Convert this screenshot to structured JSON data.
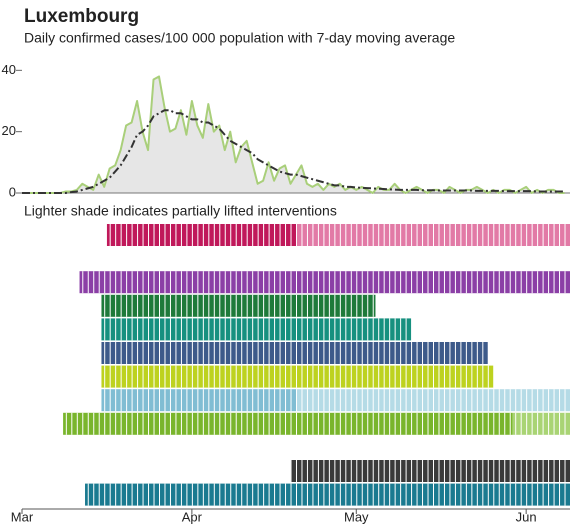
{
  "chart_data": {
    "type": "line",
    "title": "Luxembourg",
    "subtitle": "Daily confirmed cases/100 000 population with 7-day moving average",
    "interventions_note": "Lighter shade indicates partially lifted interventions",
    "x": [
      0,
      1,
      2,
      3,
      4,
      5,
      6,
      7,
      8,
      9,
      10,
      11,
      12,
      13,
      14,
      15,
      16,
      17,
      18,
      19,
      20,
      21,
      22,
      23,
      24,
      25,
      26,
      27,
      28,
      29,
      30,
      31,
      32,
      33,
      34,
      35,
      36,
      37,
      38,
      39,
      40,
      41,
      42,
      43,
      44,
      45,
      46,
      47,
      48,
      49,
      50,
      51,
      52,
      53,
      54,
      55,
      56,
      57,
      58,
      59,
      60,
      61,
      62,
      63,
      64,
      65,
      66,
      67,
      68,
      69,
      70,
      71,
      72,
      73,
      74,
      75,
      76,
      77,
      78,
      79,
      80,
      81,
      82,
      83,
      84,
      85,
      86,
      87,
      88,
      89,
      90,
      91,
      92,
      93,
      94,
      95,
      96,
      97,
      98,
      99
    ],
    "series": [
      {
        "name": "Daily",
        "color": "#a9cf7a",
        "fill": "#e6e6e6",
        "values": [
          0,
          0,
          0,
          0,
          0,
          0,
          0,
          0,
          0.5,
          0.5,
          1,
          3,
          2,
          1,
          6,
          2,
          8,
          9,
          14,
          22,
          23,
          30,
          20,
          14,
          37,
          38,
          28,
          20,
          21,
          27,
          19,
          30,
          22,
          18,
          29,
          20,
          22,
          14,
          20,
          10,
          15,
          17,
          10,
          3,
          4,
          10,
          4,
          8,
          9,
          3,
          6,
          9,
          3,
          2,
          3,
          1,
          3,
          2,
          3,
          1,
          2,
          1,
          2,
          1,
          0,
          2,
          1,
          1,
          3,
          1,
          0,
          1,
          2,
          1,
          0,
          1,
          1,
          0,
          2,
          1,
          0,
          1,
          1,
          2,
          1,
          0,
          1,
          0,
          1,
          1,
          0,
          1,
          2,
          0,
          1,
          0,
          1,
          1,
          0,
          0
        ]
      },
      {
        "name": "7-day moving average",
        "color": "#333333",
        "dash": true,
        "values": [
          0,
          0,
          0,
          0,
          0,
          0,
          0,
          0,
          0,
          0.3,
          0.5,
          1,
          1.5,
          2,
          3,
          4,
          5,
          7,
          9,
          12,
          15,
          19,
          20,
          22,
          25,
          26,
          27,
          27,
          26,
          26,
          25,
          24,
          24,
          23,
          23,
          22,
          21,
          19,
          17,
          16,
          15,
          14,
          13,
          11,
          10,
          9,
          8,
          7,
          6.5,
          6,
          6,
          5.5,
          5,
          4.5,
          4,
          3.5,
          3,
          2.5,
          2.5,
          2,
          2,
          1.8,
          1.7,
          1.6,
          1.5,
          1.4,
          1.3,
          1.2,
          1.1,
          1,
          1,
          1,
          1,
          0.9,
          0.9,
          0.9,
          0.8,
          0.8,
          0.8,
          0.8,
          0.8,
          0.8,
          0.8,
          0.7,
          0.7,
          0.7,
          0.7,
          0.7,
          0.6,
          0.6,
          0.6,
          0.6,
          0.6,
          0.6,
          0.5,
          0.5,
          0.5,
          0.5,
          0.5,
          0.5
        ]
      }
    ],
    "xlim": [
      0,
      100
    ],
    "xticks": [
      {
        "value": 0,
        "label": "Mar"
      },
      {
        "value": 31,
        "label": "Apr"
      },
      {
        "value": 61,
        "label": "May"
      },
      {
        "value": 92,
        "label": "Jun"
      }
    ],
    "ylim": [
      0,
      45
    ],
    "yticks": [
      0,
      20,
      40
    ],
    "interventions": [
      {
        "start": 15.5,
        "lifted": 50,
        "end": 100,
        "color": "#c0185a",
        "light_color": "#e27aa6"
      },
      null,
      {
        "start": 10.5,
        "end": 100,
        "color": "#8b3fa6"
      },
      {
        "start": 14.5,
        "end": 64.5,
        "color": "#1e7a3a"
      },
      {
        "start": 14.5,
        "end": 71,
        "color": "#16907f"
      },
      {
        "start": 14.5,
        "end": 85,
        "color": "#3d5a8a"
      },
      {
        "start": 14.5,
        "end": 86,
        "color": "#bdd21f"
      },
      {
        "start": 14.5,
        "lifted": 50,
        "end": 100,
        "color": "#80bdd3",
        "light_color": "#b5dbe6"
      },
      {
        "start": 7.5,
        "lifted": 89.5,
        "end": 100,
        "color": "#79b52c",
        "light_color": "#a9d474"
      },
      null,
      {
        "start": 49,
        "end": 100,
        "color": "#3a3a3a"
      },
      {
        "start": 11.5,
        "end": 100,
        "color": "#1a7a90"
      }
    ]
  }
}
